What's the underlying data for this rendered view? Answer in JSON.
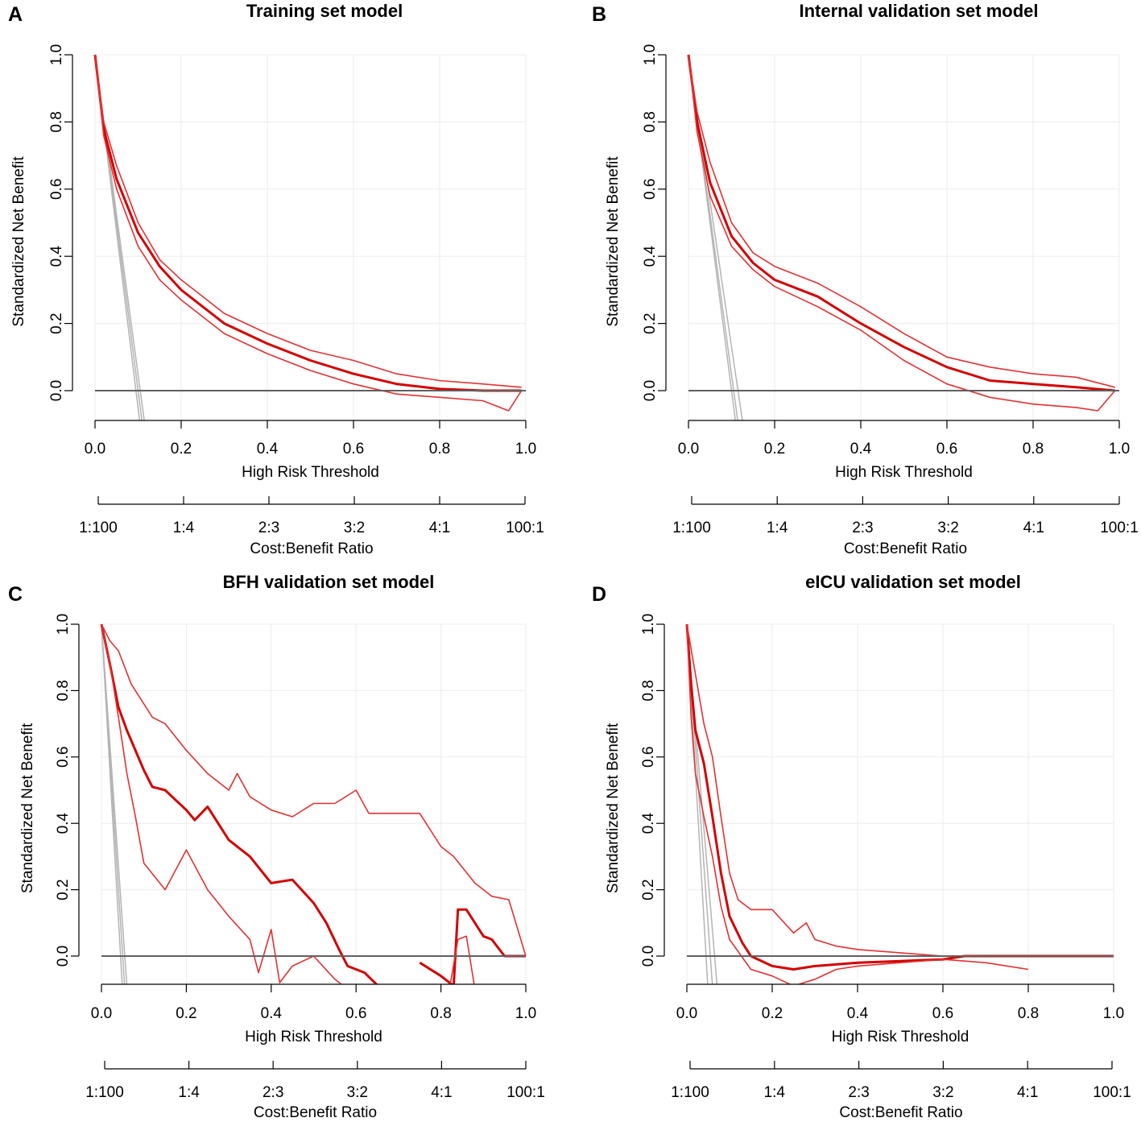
{
  "figure": {
    "x_label": "High Risk Threshold",
    "y_label": "Standardized Net Benefit",
    "ratio_label": "Cost:Benefit Ratio",
    "ratio_ticks": [
      "1:100",
      "1:4",
      "2:3",
      "3:2",
      "4:1",
      "100:1"
    ],
    "colors": {
      "model": "#d40000",
      "ci": "#e53030",
      "treat_all": "#b4b4b4",
      "treat_none": "#606060",
      "grid": "#ececec",
      "axis": "#000000"
    }
  },
  "chart_data": [
    {
      "type": "line",
      "panel": "A",
      "title": "Training set model",
      "xlabel": "High Risk Threshold",
      "ylabel": "Standardized Net Benefit",
      "xlim": [
        0,
        1
      ],
      "ylim": [
        -0.1,
        1.0
      ],
      "xticks": [
        "0.0",
        "0.2",
        "0.4",
        "0.6",
        "0.8",
        "1.0"
      ],
      "yticks": [
        "0.0",
        "0.2",
        "0.4",
        "0.6",
        "0.8",
        "1.0"
      ],
      "treat_all_x_intercepts": [
        0.095,
        0.1,
        0.105
      ],
      "series": [
        {
          "name": "model",
          "x": [
            0,
            0.02,
            0.05,
            0.1,
            0.15,
            0.2,
            0.3,
            0.4,
            0.5,
            0.6,
            0.7,
            0.8,
            0.9,
            0.99
          ],
          "y": [
            1.0,
            0.78,
            0.63,
            0.47,
            0.37,
            0.3,
            0.2,
            0.14,
            0.09,
            0.05,
            0.02,
            0.005,
            0.0,
            0.0
          ]
        },
        {
          "name": "upper",
          "x": [
            0,
            0.02,
            0.05,
            0.1,
            0.15,
            0.2,
            0.3,
            0.4,
            0.5,
            0.6,
            0.7,
            0.8,
            0.9,
            0.99
          ],
          "y": [
            1.0,
            0.8,
            0.67,
            0.5,
            0.39,
            0.33,
            0.23,
            0.17,
            0.12,
            0.09,
            0.05,
            0.03,
            0.02,
            0.01
          ]
        },
        {
          "name": "lower",
          "x": [
            0,
            0.02,
            0.05,
            0.1,
            0.15,
            0.2,
            0.3,
            0.4,
            0.5,
            0.6,
            0.7,
            0.8,
            0.9,
            0.96,
            0.99
          ],
          "y": [
            1.0,
            0.76,
            0.6,
            0.43,
            0.33,
            0.27,
            0.17,
            0.11,
            0.06,
            0.02,
            -0.01,
            -0.02,
            -0.03,
            -0.06,
            0.0
          ]
        }
      ]
    },
    {
      "type": "line",
      "panel": "B",
      "title": "Internal validation set model",
      "xlabel": "High Risk Threshold",
      "ylabel": "Standardized Net Benefit",
      "xlim": [
        0,
        1
      ],
      "ylim": [
        -0.1,
        1.0
      ],
      "xticks": [
        "0.0",
        "0.2",
        "0.4",
        "0.6",
        "0.8",
        "1.0"
      ],
      "yticks": [
        "0.0",
        "0.2",
        "0.4",
        "0.6",
        "0.8",
        "1.0"
      ],
      "treat_all_x_intercepts": [
        0.1,
        0.105,
        0.115
      ],
      "series": [
        {
          "name": "model",
          "x": [
            0,
            0.02,
            0.05,
            0.1,
            0.15,
            0.2,
            0.3,
            0.4,
            0.5,
            0.6,
            0.7,
            0.8,
            0.9,
            0.99
          ],
          "y": [
            1.0,
            0.8,
            0.62,
            0.46,
            0.38,
            0.33,
            0.28,
            0.2,
            0.13,
            0.07,
            0.03,
            0.02,
            0.01,
            0.0
          ]
        },
        {
          "name": "upper",
          "x": [
            0,
            0.02,
            0.05,
            0.1,
            0.15,
            0.2,
            0.3,
            0.4,
            0.5,
            0.6,
            0.7,
            0.8,
            0.9,
            0.99
          ],
          "y": [
            1.0,
            0.83,
            0.68,
            0.5,
            0.41,
            0.37,
            0.32,
            0.25,
            0.17,
            0.1,
            0.07,
            0.05,
            0.04,
            0.01
          ]
        },
        {
          "name": "lower",
          "x": [
            0,
            0.02,
            0.05,
            0.1,
            0.15,
            0.2,
            0.3,
            0.4,
            0.5,
            0.6,
            0.7,
            0.8,
            0.9,
            0.95,
            0.99
          ],
          "y": [
            1.0,
            0.77,
            0.58,
            0.43,
            0.36,
            0.31,
            0.25,
            0.18,
            0.09,
            0.02,
            -0.02,
            -0.04,
            -0.05,
            -0.06,
            0.0
          ]
        }
      ]
    },
    {
      "type": "line",
      "panel": "C",
      "title": "BFH validation set model",
      "xlabel": "High Risk Threshold",
      "ylabel": "Standardized Net Benefit",
      "xlim": [
        0,
        1
      ],
      "ylim": [
        -0.1,
        1.0
      ],
      "xticks": [
        "0.0",
        "0.2",
        "0.4",
        "0.6",
        "0.8",
        "1.0"
      ],
      "yticks": [
        "0.0",
        "0.2",
        "0.4",
        "0.6",
        "0.8",
        "1.0"
      ],
      "treat_all_x_intercepts": [
        0.045,
        0.05,
        0.055
      ],
      "series": [
        {
          "name": "model",
          "x": [
            0,
            0.02,
            0.04,
            0.06,
            0.08,
            0.1,
            0.12,
            0.15,
            0.2,
            0.22,
            0.25,
            0.3,
            0.35,
            0.4,
            0.45,
            0.5,
            0.53,
            0.56,
            0.58,
            0.62,
            0.66,
            null,
            0.75,
            0.8,
            0.83,
            0.84,
            0.86,
            0.88,
            0.9,
            0.92,
            0.95,
            1.0
          ],
          "y": [
            1.0,
            0.88,
            0.75,
            0.68,
            0.62,
            0.56,
            0.51,
            0.5,
            0.44,
            0.41,
            0.45,
            0.35,
            0.3,
            0.22,
            0.23,
            0.16,
            0.1,
            0.02,
            -0.03,
            -0.05,
            -0.1,
            null,
            -0.02,
            -0.06,
            -0.09,
            0.14,
            0.14,
            0.1,
            0.06,
            0.05,
            0.0,
            0.0
          ]
        },
        {
          "name": "upper",
          "x": [
            0,
            0.02,
            0.04,
            0.07,
            0.12,
            0.15,
            0.2,
            0.25,
            0.3,
            0.32,
            0.35,
            0.4,
            0.45,
            0.5,
            0.55,
            0.6,
            0.63,
            0.75,
            0.8,
            0.83,
            0.88,
            0.92,
            0.96,
            1.0
          ],
          "y": [
            1.0,
            0.95,
            0.92,
            0.82,
            0.72,
            0.7,
            0.62,
            0.55,
            0.5,
            0.55,
            0.48,
            0.44,
            0.42,
            0.46,
            0.46,
            0.5,
            0.43,
            0.43,
            0.33,
            0.3,
            0.22,
            0.18,
            0.17,
            0.0
          ]
        },
        {
          "name": "lower",
          "x": [
            0,
            0.02,
            0.04,
            0.06,
            0.08,
            0.1,
            0.15,
            0.2,
            0.25,
            0.3,
            0.35,
            0.37,
            0.4,
            0.42,
            0.45,
            0.5,
            0.55,
            0.58,
            null,
            0.82,
            0.84,
            0.86,
            0.88
          ],
          "y": [
            1.0,
            0.88,
            0.72,
            0.55,
            0.42,
            0.28,
            0.2,
            0.32,
            0.2,
            0.12,
            0.05,
            -0.05,
            0.08,
            -0.08,
            -0.03,
            0.0,
            -0.07,
            -0.1,
            null,
            -0.1,
            0.05,
            0.06,
            -0.1
          ]
        }
      ]
    },
    {
      "type": "line",
      "panel": "D",
      "title": "eICU validation set model",
      "xlabel": "High Risk Threshold",
      "ylabel": "Standardized Net Benefit",
      "xlim": [
        0,
        1
      ],
      "ylim": [
        -0.1,
        1.0
      ],
      "xticks": [
        "0.0",
        "0.2",
        "0.4",
        "0.6",
        "0.8",
        "1.0"
      ],
      "yticks": [
        "0.0",
        "0.2",
        "0.4",
        "0.6",
        "0.8",
        "1.0"
      ],
      "treat_all_x_intercepts": [
        0.045,
        0.055,
        0.065
      ],
      "series": [
        {
          "name": "model",
          "x": [
            0,
            0.01,
            0.02,
            0.04,
            0.06,
            0.08,
            0.1,
            0.13,
            0.15,
            0.2,
            0.25,
            0.3,
            0.4,
            0.5,
            0.6,
            0.65,
            0.7,
            0.8,
            1.0
          ],
          "y": [
            1.0,
            0.82,
            0.68,
            0.58,
            0.42,
            0.25,
            0.12,
            0.04,
            0.0,
            -0.03,
            -0.04,
            -0.03,
            -0.02,
            -0.015,
            -0.01,
            0.0,
            0.0,
            0.0,
            0.0
          ]
        },
        {
          "name": "upper",
          "x": [
            0,
            0.02,
            0.04,
            0.06,
            0.08,
            0.1,
            0.12,
            0.15,
            0.2,
            0.25,
            0.28,
            0.3,
            0.35,
            0.4,
            0.5,
            0.6,
            0.8,
            1.0
          ],
          "y": [
            1.0,
            0.85,
            0.7,
            0.6,
            0.42,
            0.25,
            0.17,
            0.14,
            0.14,
            0.07,
            0.1,
            0.05,
            0.03,
            0.02,
            0.01,
            0.0,
            0.0,
            0.0
          ]
        },
        {
          "name": "lower",
          "x": [
            0,
            0.01,
            0.02,
            0.04,
            0.06,
            0.08,
            0.1,
            0.15,
            0.2,
            0.25,
            0.3,
            0.35,
            0.4,
            0.5,
            0.6,
            0.7,
            0.8
          ],
          "y": [
            1.0,
            0.72,
            0.55,
            0.42,
            0.3,
            0.15,
            0.05,
            -0.04,
            -0.06,
            -0.09,
            -0.07,
            -0.04,
            -0.03,
            -0.02,
            -0.01,
            -0.02,
            -0.04
          ]
        }
      ]
    }
  ]
}
